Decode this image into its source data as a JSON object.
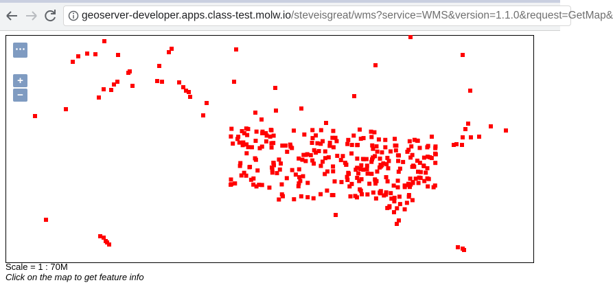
{
  "browser": {
    "url_host": "geoserver-developer.apps.class-test.molw.io",
    "url_path": "/steveisgreat/wms?service=WMS&version=1.1.0&request=GetMap&"
  },
  "map": {
    "controls": {
      "menu": "⋯",
      "zoom_in": "+",
      "zoom_out": "−"
    }
  },
  "footer": {
    "scale": "Scale = 1 : 70M",
    "hint": "Click on the map to get feature info"
  }
}
